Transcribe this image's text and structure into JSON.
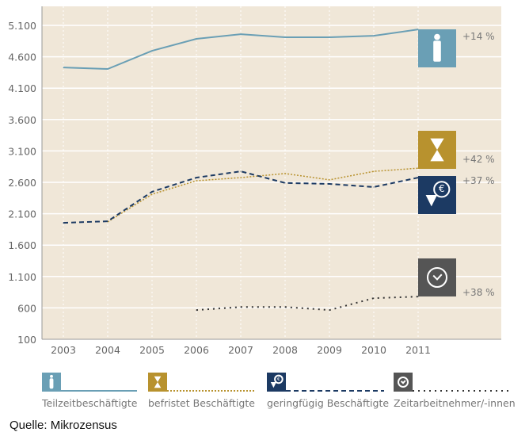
{
  "chart_data": {
    "type": "line",
    "title": "",
    "xlabel": "",
    "ylabel": "",
    "categories": [
      "2003",
      "2004",
      "2005",
      "2006",
      "2007",
      "2008",
      "2009",
      "2010",
      "2011"
    ],
    "y_ticks": [
      "100",
      "600",
      "1.100",
      "1.600",
      "2.100",
      "2.600",
      "3.100",
      "3.600",
      "4.100",
      "4.600",
      "5.100"
    ],
    "ylim": [
      100,
      5400
    ],
    "grid": true,
    "legend_position": "bottom",
    "series": [
      {
        "name": "Teilzeitbeschäftigte",
        "values": [
          4430,
          4405,
          4695,
          4885,
          4960,
          4910,
          4910,
          4935,
          5035
        ],
        "color": "#6a9fb5",
        "style": "solid",
        "icon": "person-icon",
        "change": "+14 %"
      },
      {
        "name": "befristet Beschäftigte",
        "values": [
          null,
          1970,
          2410,
          2625,
          2675,
          2740,
          2640,
          2775,
          2825
        ],
        "color": "#b8922e",
        "style": "dotted",
        "icon": "hourglass-icon",
        "change": "+42 %"
      },
      {
        "name": "geringfügig Beschäftigte",
        "values": [
          1955,
          1980,
          2450,
          2675,
          2775,
          2590,
          2575,
          2525,
          2675
        ],
        "color": "#1c3a63",
        "style": "dashed",
        "icon": "euro-down-icon",
        "change": "+37 %"
      },
      {
        "name": "Zeitarbeitnehmer/-innen",
        "values": [
          null,
          null,
          null,
          565,
          615,
          615,
          565,
          755,
          780
        ],
        "color": "#333333",
        "style": "dotted-dark",
        "icon": "clock-icon",
        "change": "+38 %"
      }
    ]
  },
  "colors": {
    "background": "#f0e7d8",
    "grid": "#ffffff",
    "axis_text": "#666666"
  },
  "source": "Quelle: Mikrozensus"
}
